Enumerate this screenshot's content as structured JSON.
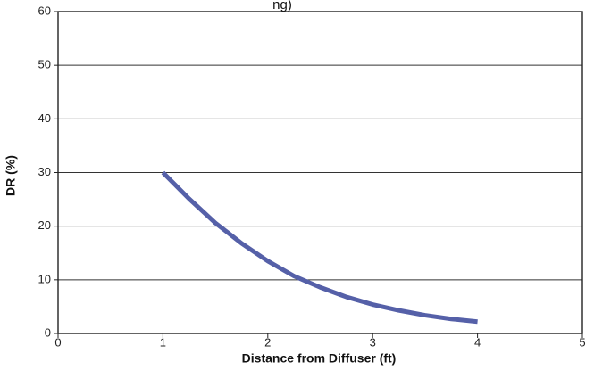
{
  "chart_data": {
    "type": "line",
    "title_fragment": "ng)",
    "xlabel": "Distance from Diffuser (ft)",
    "ylabel": "DR (%)",
    "xlim": [
      0,
      5
    ],
    "ylim": [
      0,
      60
    ],
    "x_ticks": [
      0,
      1,
      2,
      3,
      4,
      5
    ],
    "y_ticks": [
      0,
      10,
      20,
      30,
      40,
      50,
      60
    ],
    "grid": "horizontal",
    "series": [
      {
        "color": "#5560a8",
        "x": [
          1.0,
          1.25,
          1.5,
          1.75,
          2.0,
          2.25,
          2.5,
          2.75,
          3.0,
          3.25,
          3.5,
          3.75,
          4.0
        ],
        "y": [
          30.0,
          25.1,
          20.6,
          16.8,
          13.5,
          10.7,
          8.6,
          6.8,
          5.4,
          4.3,
          3.4,
          2.7,
          2.2
        ]
      }
    ]
  }
}
